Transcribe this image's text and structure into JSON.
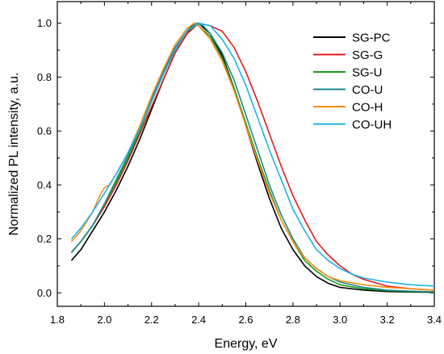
{
  "chart_data": {
    "type": "line",
    "title": "",
    "xlabel": "Energy, eV",
    "ylabel": "Normalized PL intensity, a.u.",
    "xlim": [
      1.8,
      3.4
    ],
    "ylim": [
      -0.05,
      1.08
    ],
    "xticks": [
      1.8,
      2.0,
      2.2,
      2.4,
      2.6,
      2.8,
      3.0,
      3.2,
      3.4
    ],
    "yticks": [
      0.0,
      0.2,
      0.4,
      0.6,
      0.8,
      1.0
    ],
    "xtick_labels": [
      "1.8",
      "2.0",
      "2.2",
      "2.4",
      "2.6",
      "2.8",
      "3.0",
      "3.2",
      "3.4"
    ],
    "ytick_labels": [
      "0.0",
      "0.2",
      "0.4",
      "0.6",
      "0.8",
      "1.0"
    ],
    "grid": false,
    "legend_position": "top-right",
    "series": [
      {
        "name": "SG-PC",
        "color": "#000000",
        "points": [
          [
            1.86,
            0.12
          ],
          [
            1.9,
            0.16
          ],
          [
            1.95,
            0.23
          ],
          [
            2.0,
            0.3
          ],
          [
            2.05,
            0.38
          ],
          [
            2.1,
            0.47
          ],
          [
            2.15,
            0.57
          ],
          [
            2.2,
            0.68
          ],
          [
            2.25,
            0.79
          ],
          [
            2.3,
            0.89
          ],
          [
            2.35,
            0.96
          ],
          [
            2.38,
            0.995
          ],
          [
            2.4,
            1.0
          ],
          [
            2.45,
            0.96
          ],
          [
            2.5,
            0.88
          ],
          [
            2.55,
            0.76
          ],
          [
            2.6,
            0.62
          ],
          [
            2.65,
            0.48
          ],
          [
            2.7,
            0.35
          ],
          [
            2.75,
            0.24
          ],
          [
            2.8,
            0.16
          ],
          [
            2.85,
            0.1
          ],
          [
            2.9,
            0.06
          ],
          [
            2.95,
            0.035
          ],
          [
            3.0,
            0.02
          ],
          [
            3.1,
            0.01
          ],
          [
            3.2,
            0.005
          ],
          [
            3.3,
            0.003
          ],
          [
            3.4,
            0.002
          ]
        ]
      },
      {
        "name": "SG-G",
        "color": "#e41a1c",
        "points": [
          [
            1.86,
            0.15
          ],
          [
            1.9,
            0.19
          ],
          [
            1.95,
            0.25
          ],
          [
            2.0,
            0.32
          ],
          [
            2.05,
            0.4
          ],
          [
            2.1,
            0.49
          ],
          [
            2.15,
            0.59
          ],
          [
            2.2,
            0.69
          ],
          [
            2.25,
            0.79
          ],
          [
            2.3,
            0.89
          ],
          [
            2.35,
            0.96
          ],
          [
            2.4,
            1.0
          ],
          [
            2.45,
            0.99
          ],
          [
            2.5,
            0.97
          ],
          [
            2.55,
            0.91
          ],
          [
            2.6,
            0.82
          ],
          [
            2.65,
            0.71
          ],
          [
            2.7,
            0.59
          ],
          [
            2.75,
            0.47
          ],
          [
            2.8,
            0.36
          ],
          [
            2.85,
            0.27
          ],
          [
            2.9,
            0.19
          ],
          [
            2.95,
            0.14
          ],
          [
            3.0,
            0.1
          ],
          [
            3.05,
            0.07
          ],
          [
            3.1,
            0.05
          ],
          [
            3.2,
            0.025
          ],
          [
            3.3,
            0.015
          ],
          [
            3.4,
            0.01
          ]
        ]
      },
      {
        "name": "SG-U",
        "color": "#1a9a1a",
        "points": [
          [
            1.86,
            0.15
          ],
          [
            1.9,
            0.19
          ],
          [
            1.95,
            0.25
          ],
          [
            2.0,
            0.33
          ],
          [
            2.05,
            0.41
          ],
          [
            2.1,
            0.5
          ],
          [
            2.15,
            0.6
          ],
          [
            2.2,
            0.71
          ],
          [
            2.25,
            0.81
          ],
          [
            2.3,
            0.91
          ],
          [
            2.35,
            0.97
          ],
          [
            2.38,
            1.0
          ],
          [
            2.4,
            0.99
          ],
          [
            2.45,
            0.95
          ],
          [
            2.5,
            0.87
          ],
          [
            2.55,
            0.76
          ],
          [
            2.6,
            0.63
          ],
          [
            2.65,
            0.5
          ],
          [
            2.7,
            0.38
          ],
          [
            2.75,
            0.27
          ],
          [
            2.8,
            0.19
          ],
          [
            2.85,
            0.12
          ],
          [
            2.9,
            0.08
          ],
          [
            2.95,
            0.05
          ],
          [
            3.0,
            0.03
          ],
          [
            3.1,
            0.015
          ],
          [
            3.2,
            0.008
          ],
          [
            3.3,
            0.005
          ],
          [
            3.4,
            0.003
          ]
        ]
      },
      {
        "name": "CO-U",
        "color": "#1a8a8a",
        "points": [
          [
            1.86,
            0.15
          ],
          [
            1.9,
            0.19
          ],
          [
            1.95,
            0.25
          ],
          [
            2.0,
            0.33
          ],
          [
            2.05,
            0.42
          ],
          [
            2.1,
            0.51
          ],
          [
            2.15,
            0.61
          ],
          [
            2.2,
            0.72
          ],
          [
            2.25,
            0.82
          ],
          [
            2.3,
            0.91
          ],
          [
            2.35,
            0.97
          ],
          [
            2.39,
            1.0
          ],
          [
            2.42,
            0.99
          ],
          [
            2.45,
            0.96
          ],
          [
            2.5,
            0.89
          ],
          [
            2.55,
            0.79
          ],
          [
            2.6,
            0.66
          ],
          [
            2.65,
            0.53
          ],
          [
            2.7,
            0.4
          ],
          [
            2.75,
            0.29
          ],
          [
            2.8,
            0.2
          ],
          [
            2.85,
            0.13
          ],
          [
            2.9,
            0.09
          ],
          [
            2.95,
            0.06
          ],
          [
            3.0,
            0.04
          ],
          [
            3.1,
            0.02
          ],
          [
            3.2,
            0.01
          ],
          [
            3.3,
            0.006
          ],
          [
            3.4,
            0.004
          ]
        ]
      },
      {
        "name": "CO-H",
        "color": "#ff8c1a",
        "points": [
          [
            1.86,
            0.19
          ],
          [
            1.9,
            0.23
          ],
          [
            1.95,
            0.3
          ],
          [
            1.98,
            0.36
          ],
          [
            2.0,
            0.39
          ],
          [
            2.02,
            0.4
          ],
          [
            2.05,
            0.44
          ],
          [
            2.1,
            0.52
          ],
          [
            2.15,
            0.62
          ],
          [
            2.2,
            0.73
          ],
          [
            2.25,
            0.83
          ],
          [
            2.3,
            0.92
          ],
          [
            2.35,
            0.98
          ],
          [
            2.38,
            1.0
          ],
          [
            2.4,
            0.99
          ],
          [
            2.45,
            0.94
          ],
          [
            2.5,
            0.86
          ],
          [
            2.55,
            0.75
          ],
          [
            2.6,
            0.62
          ],
          [
            2.65,
            0.49
          ],
          [
            2.7,
            0.37
          ],
          [
            2.75,
            0.27
          ],
          [
            2.8,
            0.19
          ],
          [
            2.85,
            0.13
          ],
          [
            2.9,
            0.09
          ],
          [
            2.95,
            0.06
          ],
          [
            3.0,
            0.045
          ],
          [
            3.1,
            0.03
          ],
          [
            3.2,
            0.02
          ],
          [
            3.3,
            0.015
          ],
          [
            3.4,
            0.01
          ]
        ]
      },
      {
        "name": "CO-UH",
        "color": "#1ab2e6",
        "points": [
          [
            1.86,
            0.2
          ],
          [
            1.9,
            0.24
          ],
          [
            1.95,
            0.3
          ],
          [
            2.0,
            0.37
          ],
          [
            2.05,
            0.44
          ],
          [
            2.1,
            0.52
          ],
          [
            2.15,
            0.61
          ],
          [
            2.2,
            0.71
          ],
          [
            2.25,
            0.81
          ],
          [
            2.3,
            0.9
          ],
          [
            2.35,
            0.97
          ],
          [
            2.4,
            1.0
          ],
          [
            2.45,
            0.99
          ],
          [
            2.5,
            0.94
          ],
          [
            2.55,
            0.87
          ],
          [
            2.6,
            0.77
          ],
          [
            2.65,
            0.65
          ],
          [
            2.7,
            0.53
          ],
          [
            2.75,
            0.42
          ],
          [
            2.8,
            0.31
          ],
          [
            2.85,
            0.23
          ],
          [
            2.9,
            0.16
          ],
          [
            2.95,
            0.12
          ],
          [
            3.0,
            0.09
          ],
          [
            3.05,
            0.07
          ],
          [
            3.1,
            0.055
          ],
          [
            3.2,
            0.04
          ],
          [
            3.3,
            0.03
          ],
          [
            3.4,
            0.025
          ]
        ]
      }
    ]
  }
}
